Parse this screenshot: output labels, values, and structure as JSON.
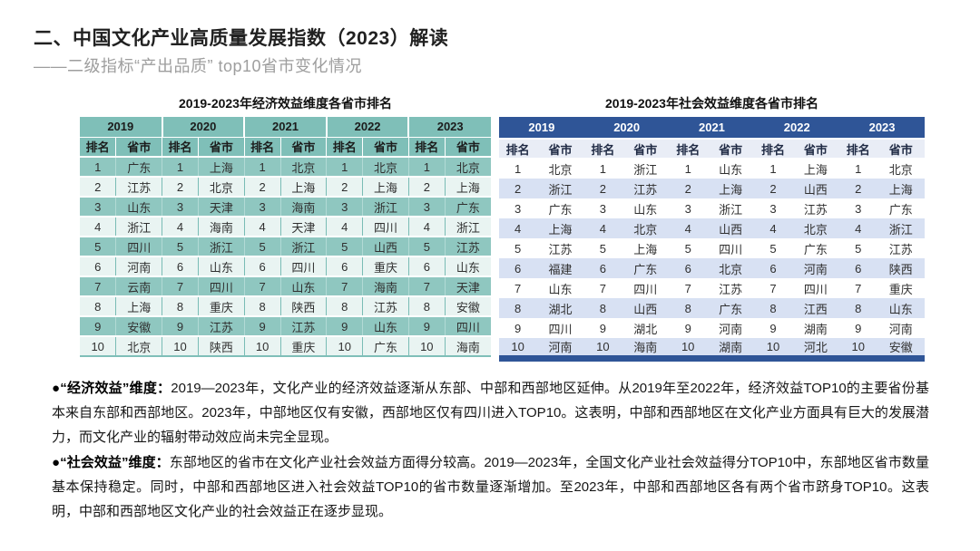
{
  "page": {
    "title": "二、中国文化产业高质量发展指数（2023）解读",
    "subtitle": "——二级指标“产出品质” top10省市变化情况"
  },
  "tables": {
    "economic": {
      "title": "2019-2023年经济效益维度各省市排名",
      "years": [
        "2019",
        "2020",
        "2021",
        "2022",
        "2023"
      ],
      "col_headers": {
        "rank": "排名",
        "province": "省市"
      },
      "rows": [
        {
          "rank": "1",
          "provinces": [
            "广东",
            "上海",
            "北京",
            "北京",
            "北京"
          ]
        },
        {
          "rank": "2",
          "provinces": [
            "江苏",
            "北京",
            "上海",
            "上海",
            "上海"
          ]
        },
        {
          "rank": "3",
          "provinces": [
            "山东",
            "天津",
            "海南",
            "浙江",
            "广东"
          ]
        },
        {
          "rank": "4",
          "provinces": [
            "浙江",
            "海南",
            "天津",
            "四川",
            "浙江"
          ]
        },
        {
          "rank": "5",
          "provinces": [
            "四川",
            "浙江",
            "浙江",
            "山西",
            "江苏"
          ]
        },
        {
          "rank": "6",
          "provinces": [
            "河南",
            "山东",
            "四川",
            "重庆",
            "山东"
          ]
        },
        {
          "rank": "7",
          "provinces": [
            "云南",
            "四川",
            "山东",
            "海南",
            "天津"
          ]
        },
        {
          "rank": "8",
          "provinces": [
            "上海",
            "重庆",
            "陕西",
            "江苏",
            "安徽"
          ]
        },
        {
          "rank": "9",
          "provinces": [
            "安徽",
            "江苏",
            "江苏",
            "山东",
            "四川"
          ]
        },
        {
          "rank": "10",
          "provinces": [
            "北京",
            "陕西",
            "重庆",
            "广东",
            "海南"
          ]
        }
      ]
    },
    "social": {
      "title": "2019-2023年社会效益维度各省市排名",
      "years": [
        "2019",
        "2020",
        "2021",
        "2022",
        "2023"
      ],
      "col_headers": {
        "rank": "排名",
        "province": "省市"
      },
      "rows": [
        {
          "rank": "1",
          "provinces": [
            "北京",
            "浙江",
            "山东",
            "上海",
            "北京"
          ]
        },
        {
          "rank": "2",
          "provinces": [
            "浙江",
            "江苏",
            "上海",
            "山西",
            "上海"
          ]
        },
        {
          "rank": "3",
          "provinces": [
            "广东",
            "山东",
            "浙江",
            "江苏",
            "广东"
          ]
        },
        {
          "rank": "4",
          "provinces": [
            "上海",
            "北京",
            "山西",
            "北京",
            "浙江"
          ]
        },
        {
          "rank": "5",
          "provinces": [
            "江苏",
            "上海",
            "四川",
            "广东",
            "江苏"
          ]
        },
        {
          "rank": "6",
          "provinces": [
            "福建",
            "广东",
            "北京",
            "河南",
            "陕西"
          ]
        },
        {
          "rank": "7",
          "provinces": [
            "山东",
            "四川",
            "江苏",
            "四川",
            "重庆"
          ]
        },
        {
          "rank": "8",
          "provinces": [
            "湖北",
            "山西",
            "广东",
            "江西",
            "山东"
          ]
        },
        {
          "rank": "9",
          "provinces": [
            "四川",
            "湖北",
            "河南",
            "湖南",
            "河南"
          ]
        },
        {
          "rank": "10",
          "provinces": [
            "河南",
            "海南",
            "湖南",
            "河北",
            "安徽"
          ]
        }
      ]
    }
  },
  "notes": [
    {
      "label": "●“经济效益”维度：",
      "text": "2019—2023年，文化产业的经济效益逐渐从东部、中部和西部地区延伸。从2019年至2022年，经济效益TOP10的主要省份基本来自东部和西部地区。2023年，中部地区仅有安徽，西部地区仅有四川进入TOP10。这表明，中部和西部地区在文化产业方面具有巨大的发展潜力，而文化产业的辐射带动效应尚未完全显现。"
    },
    {
      "label": "●“社会效益”维度：",
      "text": "东部地区的省市在文化产业社会效益方面得分较高。2019—2023年，全国文化产业社会效益得分TOP10中，东部地区省市数量基本保持稳定。同时，中部和西部地区进入社会效益TOP10的省市数量逐渐增加。至2023年，中部和西部地区各有两个省市跻身TOP10。这表明，中部和西部地区文化产业的社会效益正在逐步显现。"
    }
  ],
  "colors": {
    "teal_header": "#7FBFB8",
    "teal_row": "#8FC7C0",
    "teal_row_light": "#E9F4F2",
    "blue_header": "#2F5597",
    "blue_row_light": "#D8E1F3",
    "blue_subheader": "#E9EDF6",
    "subtitle_gray": "#9E9E9E"
  }
}
